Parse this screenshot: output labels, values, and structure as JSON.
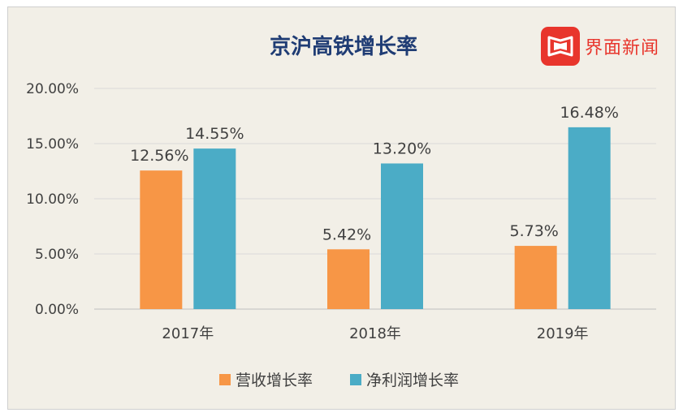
{
  "logo_text": "界面新闻",
  "colors": {
    "revenue": "#f79646",
    "profit": "#4bacc6",
    "title": "#1f3c74",
    "brand": "#e8352c"
  },
  "chart_data": {
    "type": "bar",
    "title": "京沪高铁增长率",
    "categories": [
      "2017年",
      "2018年",
      "2019年"
    ],
    "series": [
      {
        "name": "营收增长率",
        "values": [
          12.56,
          5.42,
          5.73
        ],
        "labels": [
          "12.56%",
          "5.42%",
          "5.73%"
        ]
      },
      {
        "name": "净利润增长率",
        "values": [
          14.55,
          13.2,
          16.48
        ],
        "labels": [
          "14.55%",
          "13.20%",
          "16.48%"
        ]
      }
    ],
    "yticks": [
      "0.00%",
      "5.00%",
      "10.00%",
      "15.00%",
      "20.00%"
    ],
    "ylim": [
      0,
      20
    ],
    "grid": true,
    "legend": "bottom"
  }
}
